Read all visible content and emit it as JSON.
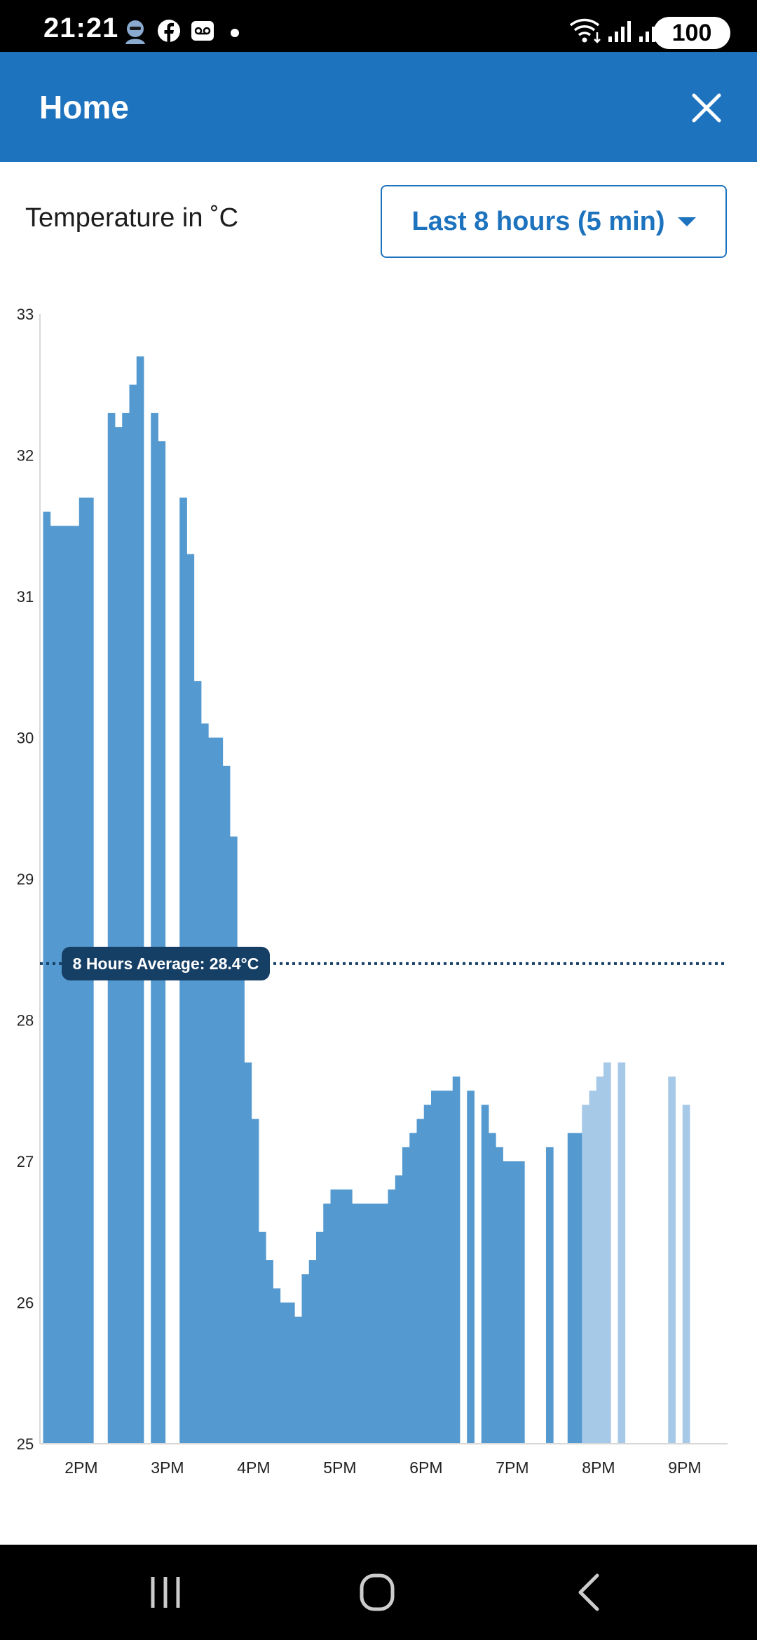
{
  "status_bar": {
    "time": "21:21",
    "battery": "100"
  },
  "header": {
    "title": "Home"
  },
  "controls": {
    "chart_title": "Temperature in ˚C",
    "range_label": "Last 8 hours (5 min)"
  },
  "colors": {
    "bar": "#5499cf",
    "bar_light": "#a6c9e7",
    "accent": "#1e73be",
    "average": "#163f66"
  },
  "chart_data": {
    "type": "bar",
    "title": "Temperature in ˚C",
    "xlabel": "",
    "ylabel": "",
    "ylim": [
      25,
      33
    ],
    "yticks": [
      25,
      26,
      27,
      28,
      29,
      30,
      31,
      32,
      33
    ],
    "xticks": [
      "2PM",
      "3PM",
      "4PM",
      "5PM",
      "6PM",
      "7PM",
      "8PM",
      "9PM"
    ],
    "grid": false,
    "average": {
      "value": 28.4,
      "label": "8 Hours Average: 28.4°C"
    },
    "series": [
      {
        "values": [
          31.6,
          31.5,
          31.5,
          31.5,
          31.5,
          31.7,
          31.7,
          null,
          null,
          32.3,
          32.2,
          32.3,
          32.5,
          32.7,
          null,
          32.3,
          32.1,
          null,
          null,
          31.7,
          31.3,
          30.4,
          30.1,
          30.0,
          30.0,
          29.8,
          29.3,
          28.3,
          27.7,
          27.3,
          26.5,
          26.3,
          26.1,
          26.0,
          26.0,
          25.9,
          26.2,
          26.3,
          26.5,
          26.7,
          26.8,
          26.8,
          26.8,
          26.7,
          26.7,
          26.7,
          26.7,
          26.7,
          26.8,
          26.9,
          27.1,
          27.2,
          27.3,
          27.4,
          27.5,
          27.5,
          27.5,
          27.6,
          null,
          27.5,
          null,
          27.4,
          27.2,
          27.1,
          27.0,
          27.0,
          27.0,
          null,
          null,
          null,
          27.1,
          null,
          null,
          27.2,
          27.2,
          null,
          null,
          null,
          null,
          null,
          null,
          null,
          null,
          null,
          null,
          null,
          null,
          null,
          null,
          null,
          null,
          null,
          null,
          null,
          null,
          null
        ]
      },
      {
        "values": [
          null,
          null,
          null,
          null,
          null,
          null,
          null,
          null,
          null,
          null,
          null,
          null,
          null,
          null,
          null,
          null,
          null,
          null,
          null,
          null,
          null,
          null,
          null,
          null,
          null,
          null,
          null,
          null,
          null,
          null,
          null,
          null,
          null,
          null,
          null,
          null,
          null,
          null,
          null,
          null,
          null,
          null,
          null,
          null,
          null,
          null,
          null,
          null,
          null,
          null,
          null,
          null,
          null,
          null,
          null,
          null,
          null,
          null,
          null,
          null,
          null,
          null,
          null,
          null,
          null,
          null,
          null,
          null,
          null,
          null,
          null,
          null,
          null,
          null,
          null,
          27.4,
          27.5,
          27.6,
          27.7,
          null,
          27.7,
          null,
          null,
          null,
          null,
          null,
          null,
          27.6,
          null,
          27.4,
          null,
          null,
          null,
          null,
          null,
          null
        ]
      }
    ]
  }
}
